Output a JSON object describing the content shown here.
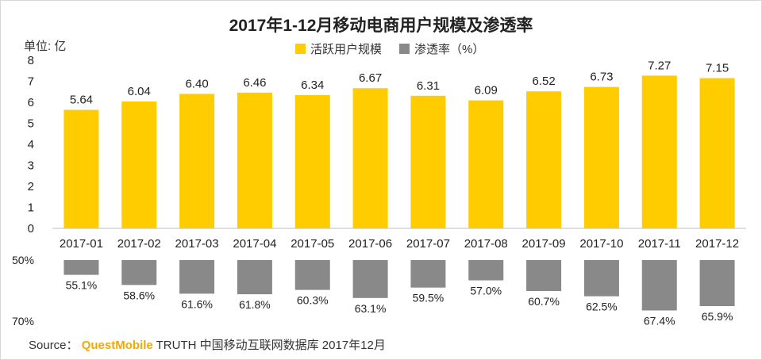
{
  "chart_data": [
    {
      "type": "bar",
      "title": "2017年1-12月移动电商用户规模及渗透率",
      "ylabel": "单位: 亿",
      "ylim": [
        0,
        8
      ],
      "yticks": [
        0,
        1,
        2,
        3,
        4,
        5,
        6,
        7,
        8
      ],
      "categories": [
        "2017-01",
        "2017-02",
        "2017-03",
        "2017-04",
        "2017-05",
        "2017-06",
        "2017-07",
        "2017-08",
        "2017-09",
        "2017-10",
        "2017-11",
        "2017-12"
      ],
      "series": [
        {
          "name": "活跃用户规模",
          "color": "#ffcc00",
          "values": [
            5.64,
            6.04,
            6.4,
            6.46,
            6.34,
            6.67,
            6.31,
            6.09,
            6.52,
            6.73,
            7.27,
            7.15
          ],
          "labels": [
            "5.64",
            "6.04",
            "6.40",
            "6.46",
            "6.34",
            "6.67",
            "6.31",
            "6.09",
            "6.52",
            "6.73",
            "7.27",
            "7.15"
          ]
        }
      ]
    },
    {
      "type": "bar",
      "orientation": "downward",
      "ylim": [
        50,
        70
      ],
      "ytick_labels": [
        "50%",
        "70%"
      ],
      "categories": [
        "2017-01",
        "2017-02",
        "2017-03",
        "2017-04",
        "2017-05",
        "2017-06",
        "2017-07",
        "2017-08",
        "2017-09",
        "2017-10",
        "2017-11",
        "2017-12"
      ],
      "series": [
        {
          "name": "渗透率（%）",
          "color": "#898989",
          "values": [
            55.1,
            58.6,
            61.6,
            61.8,
            60.3,
            63.1,
            59.5,
            57.0,
            60.7,
            62.5,
            67.4,
            65.9
          ],
          "labels": [
            "55.1%",
            "58.6%",
            "61.6%",
            "61.8%",
            "60.3%",
            "63.1%",
            "59.5%",
            "57.0%",
            "60.7%",
            "62.5%",
            "67.4%",
            "65.9%"
          ]
        }
      ]
    }
  ],
  "legend": {
    "active_users": "活跃用户规模",
    "penetration": "渗透率（%）"
  },
  "source": {
    "prefix": "Source：",
    "brand": "QuestMobile",
    "rest": "TRUTH 中国移动互联网数据库 2017年12月"
  }
}
